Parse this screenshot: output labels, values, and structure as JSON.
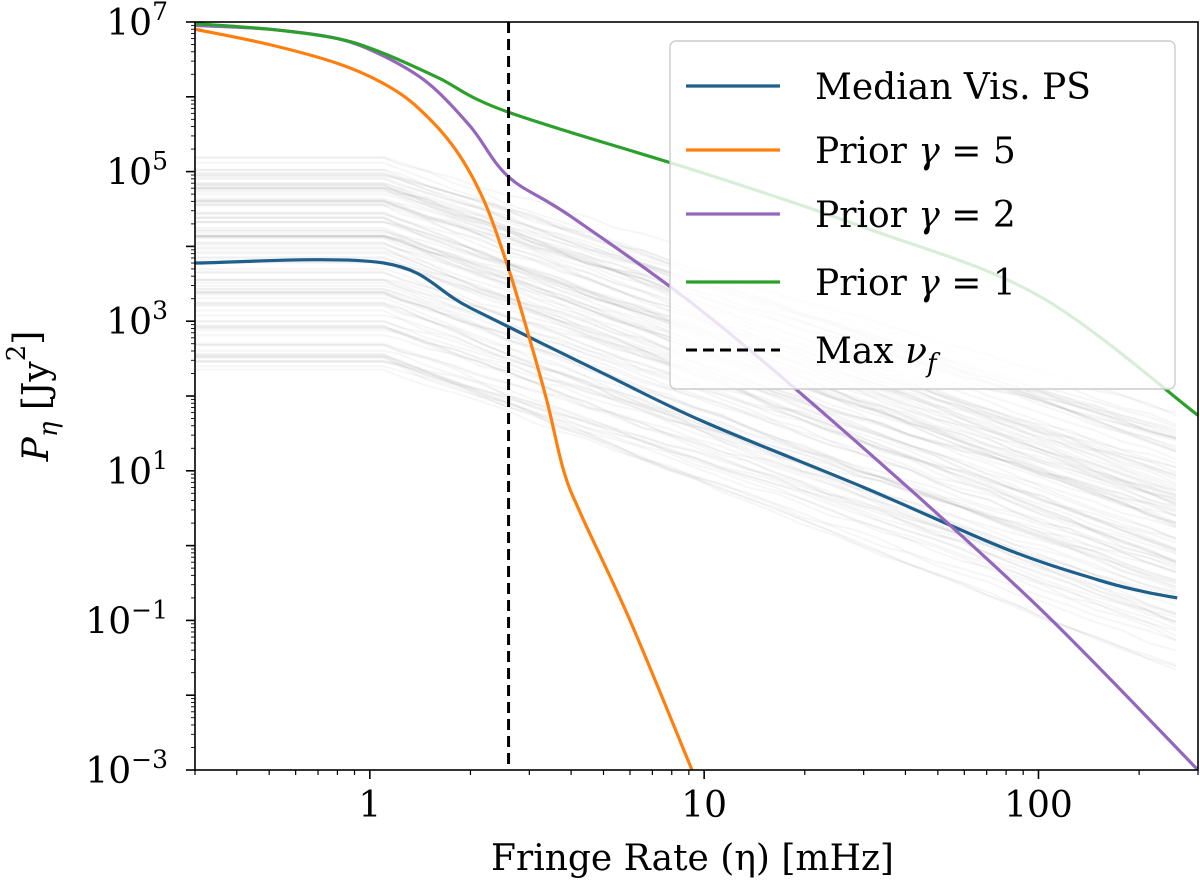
{
  "chart_data": {
    "type": "line",
    "xscale": "log",
    "yscale": "log",
    "xlabel": "Fringe Rate (η) [mHz]",
    "ylabel": "P_η [Jy²]",
    "xlim": [
      0.3,
      300
    ],
    "ylim": [
      0.001,
      10000000
    ],
    "x_ticks": [
      {
        "value": 1,
        "label": "1"
      },
      {
        "value": 10,
        "label": "10"
      },
      {
        "value": 100,
        "label": "100"
      }
    ],
    "y_ticks": [
      {
        "value": 0.001,
        "base": "10",
        "exp": "−3"
      },
      {
        "value": 0.1,
        "base": "10",
        "exp": "−1"
      },
      {
        "value": 10,
        "base": "10",
        "exp": "1"
      },
      {
        "value": 1000,
        "base": "10",
        "exp": "3"
      },
      {
        "value": 100000,
        "base": "10",
        "exp": "5"
      },
      {
        "value": 10000000,
        "base": "10",
        "exp": "7"
      }
    ],
    "vline": {
      "name": "Max ν_f",
      "x": 2.6,
      "color": "#000000",
      "style": "dashed"
    },
    "series": [
      {
        "name": "Median Vis. PS",
        "label_main": "Median Vis. PS",
        "color": "#1f5f8b",
        "x": [
          0.3,
          1.1,
          2,
          5,
          10,
          30,
          80,
          150,
          200,
          260
        ],
        "y": [
          6000,
          6000,
          1500,
          200,
          45,
          6,
          0.9,
          0.35,
          0.25,
          0.2
        ]
      },
      {
        "name": "Prior γ = 5",
        "label_main": "Prior ",
        "label_sym": "γ",
        "label_rest": " = 5",
        "color": "#ff7f0e",
        "x": [
          0.3,
          0.5,
          0.8,
          1.1,
          1.4,
          1.8,
          2.2,
          2.6,
          3.0,
          3.4,
          3.8,
          4.3,
          6,
          9.2
        ],
        "y": [
          8000000,
          5000000,
          2800000,
          1500000,
          700000,
          200000,
          40000,
          5000,
          600,
          80,
          10,
          2.5,
          0.1,
          0.001
        ]
      },
      {
        "name": "Prior γ = 2",
        "label_main": "Prior ",
        "label_sym": "γ",
        "label_rest": " = 2",
        "color": "#9467bd",
        "x": [
          0.3,
          0.5,
          0.8,
          1.1,
          1.5,
          2.0,
          2.6,
          4,
          10,
          30,
          100,
          300
        ],
        "y": [
          9000000,
          8000000,
          6000000,
          3500000,
          1500000,
          400000,
          85000,
          25000,
          1300,
          20,
          0.15,
          0.001
        ]
      },
      {
        "name": "Prior γ = 1",
        "label_main": "Prior ",
        "label_sym": "γ",
        "label_rest": " = 1",
        "color": "#2ca02c",
        "x": [
          0.3,
          0.5,
          0.8,
          1.1,
          1.6,
          2.6,
          10,
          30,
          100,
          300
        ],
        "y": [
          9500000,
          8000000,
          6000000,
          3800000,
          1800000,
          620000,
          95000,
          18000,
          2200,
          55
        ]
      }
    ],
    "background_traces": {
      "description": "many light gray individual visibility power spectra",
      "color": "#808080",
      "count": 110
    },
    "legend": {
      "position": "top-right",
      "entries": [
        "Median Vis. PS",
        "Prior γ = 5",
        "Prior γ = 2",
        "Prior γ = 1",
        "Max ν_f"
      ]
    }
  }
}
